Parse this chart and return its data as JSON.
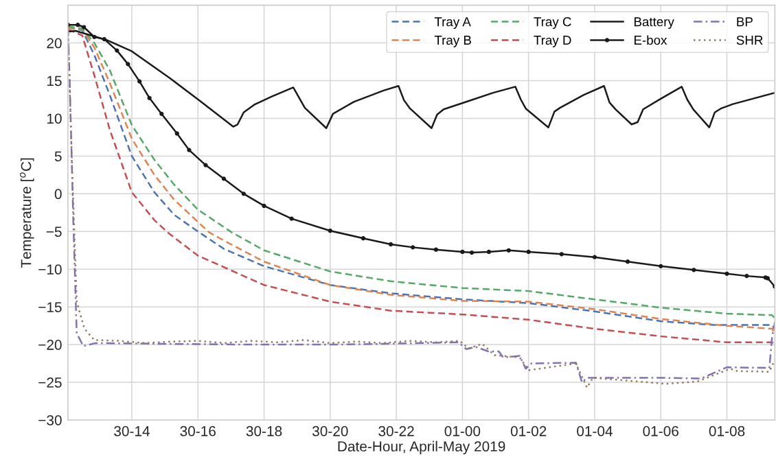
{
  "chart_data": {
    "type": "line",
    "xlabel": "Date-Hour, April-May 2019",
    "ylabel": "Temperature [$^{o}$C]",
    "xlim": [
      "2019-04-30T12:04",
      "2019-05-01T09:27"
    ],
    "ylim": [
      -30,
      25
    ],
    "xticks": [
      {
        "value": "2019-04-30T14:00",
        "label": "30-14"
      },
      {
        "value": "2019-04-30T16:00",
        "label": "30-16"
      },
      {
        "value": "2019-04-30T18:00",
        "label": "30-18"
      },
      {
        "value": "2019-04-30T20:00",
        "label": "30-20"
      },
      {
        "value": "2019-04-30T22:00",
        "label": "30-22"
      },
      {
        "value": "2019-05-01T00:00",
        "label": "01-00"
      },
      {
        "value": "2019-05-01T02:00",
        "label": "01-02"
      },
      {
        "value": "2019-05-01T04:00",
        "label": "01-04"
      },
      {
        "value": "2019-05-01T06:00",
        "label": "01-06"
      },
      {
        "value": "2019-05-01T08:00",
        "label": "01-08"
      }
    ],
    "yticks": [
      -30,
      -25,
      -20,
      -15,
      -10,
      -5,
      0,
      5,
      10,
      15,
      20
    ],
    "grid": true,
    "legend": "top right",
    "series": [
      {
        "name": "Tray A",
        "color": "#4c72b0",
        "line_style": "dashed",
        "x": [
          "2019-04-30T12:04",
          "2019-04-30T12:30",
          "2019-04-30T12:52",
          "2019-04-30T13:20",
          "2019-04-30T14:00",
          "2019-04-30T14:41",
          "2019-04-30T15:17",
          "2019-04-30T16:00",
          "2019-04-30T16:47",
          "2019-04-30T18:00",
          "2019-04-30T20:00",
          "2019-04-30T21:50",
          "2019-05-01T00:00",
          "2019-05-01T02:00",
          "2019-05-01T04:00",
          "2019-05-01T06:00",
          "2019-05-01T07:36",
          "2019-05-01T09:22",
          "2019-05-01T09:27"
        ],
        "values": [
          22,
          21.7,
          18.4,
          13.1,
          5.0,
          0.2,
          -2.8,
          -5.0,
          -7.3,
          -9.6,
          -12.1,
          -13.2,
          -14.0,
          -14.5,
          -15.6,
          -16.9,
          -17.4,
          -17.4,
          -18.0
        ]
      },
      {
        "name": "Tray B",
        "color": "#dd8452",
        "line_style": "dashed",
        "x": [
          "2019-04-30T12:04",
          "2019-04-30T12:30",
          "2019-04-30T12:52",
          "2019-04-30T13:20",
          "2019-04-30T14:00",
          "2019-04-30T14:41",
          "2019-04-30T15:17",
          "2019-04-30T16:20",
          "2019-04-30T16:47",
          "2019-04-30T18:00",
          "2019-04-30T20:00",
          "2019-04-30T21:50",
          "2019-05-01T00:00",
          "2019-05-01T02:00",
          "2019-05-01T04:00",
          "2019-05-01T06:00",
          "2019-05-01T08:00",
          "2019-05-01T09:22",
          "2019-05-01T09:27"
        ],
        "values": [
          22,
          21.8,
          19.4,
          14.7,
          7.3,
          2.5,
          -0.8,
          -5.1,
          -6.2,
          -9.0,
          -12.1,
          -13.4,
          -14.2,
          -14.3,
          -15.3,
          -16.6,
          -17.5,
          -17.9,
          -18.5
        ]
      },
      {
        "name": "Tray C",
        "color": "#55a868",
        "line_style": "dashed",
        "x": [
          "2019-04-30T12:04",
          "2019-04-30T12:30",
          "2019-04-30T12:52",
          "2019-04-30T13:20",
          "2019-04-30T14:00",
          "2019-04-30T14:41",
          "2019-04-30T15:17",
          "2019-04-30T16:00",
          "2019-04-30T17:01",
          "2019-04-30T18:00",
          "2019-04-30T20:00",
          "2019-04-30T21:50",
          "2019-05-01T00:00",
          "2019-05-01T02:00",
          "2019-05-01T04:00",
          "2019-05-01T06:00",
          "2019-05-01T08:00",
          "2019-05-01T09:22",
          "2019-05-01T09:27"
        ],
        "values": [
          22.2,
          21.9,
          20.0,
          16.4,
          9.1,
          4.5,
          1.2,
          -2.1,
          -5.1,
          -7.5,
          -10.3,
          -11.6,
          -12.5,
          -12.9,
          -14.0,
          -15.1,
          -15.9,
          -16.1,
          -16.5
        ]
      },
      {
        "name": "Tray D",
        "color": "#c44e52",
        "line_style": "dashed",
        "x": [
          "2019-04-30T12:04",
          "2019-04-30T12:30",
          "2019-04-30T12:52",
          "2019-04-30T13:20",
          "2019-04-30T14:00",
          "2019-04-30T14:41",
          "2019-04-30T15:08",
          "2019-04-30T16:00",
          "2019-04-30T18:00",
          "2019-04-30T20:00",
          "2019-04-30T21:50",
          "2019-05-01T00:00",
          "2019-05-01T02:00",
          "2019-05-01T04:00",
          "2019-05-01T06:00",
          "2019-05-01T08:00",
          "2019-05-01T09:22",
          "2019-05-01T09:27"
        ],
        "values": [
          21.8,
          21.0,
          15.7,
          8.5,
          0.2,
          -3.5,
          -5.3,
          -8.2,
          -12.1,
          -14.3,
          -15.5,
          -16.0,
          -16.7,
          -17.9,
          -18.9,
          -19.7,
          -19.7,
          -20.0
        ]
      },
      {
        "name": "Battery",
        "color": "#1a1a1a",
        "line_style": "solid",
        "x": [
          "2019-04-30T12:04",
          "2019-04-30T12:18",
          "2019-04-30T13:14",
          "2019-04-30T14:00",
          "2019-04-30T15:08",
          "2019-04-30T16:02",
          "2019-04-30T17:04",
          "2019-04-30T17:12",
          "2019-04-30T17:23",
          "2019-04-30T17:42",
          "2019-04-30T18:14",
          "2019-04-30T18:53",
          "2019-04-30T19:14",
          "2019-04-30T19:53",
          "2019-04-30T20:05",
          "2019-04-30T20:43",
          "2019-04-30T21:37",
          "2019-04-30T22:04",
          "2019-04-30T22:14",
          "2019-04-30T22:25",
          "2019-04-30T23:04",
          "2019-04-30T23:14",
          "2019-04-30T23:26",
          "2019-05-01T00:11",
          "2019-05-01T00:56",
          "2019-05-01T01:36",
          "2019-05-01T01:46",
          "2019-05-01T01:55",
          "2019-05-01T02:36",
          "2019-05-01T02:47",
          "2019-05-01T02:57",
          "2019-05-01T03:40",
          "2019-05-01T04:17",
          "2019-05-01T04:27",
          "2019-05-01T04:38",
          "2019-05-01T05:07",
          "2019-05-01T05:18",
          "2019-05-01T05:28",
          "2019-05-01T06:00",
          "2019-05-01T06:38",
          "2019-05-01T06:48",
          "2019-05-01T06:59",
          "2019-05-01T07:28",
          "2019-05-01T07:38",
          "2019-05-01T07:49",
          "2019-05-01T08:11",
          "2019-05-01T09:27"
        ],
        "values": [
          21.5,
          21.6,
          20.4,
          18.9,
          15.4,
          12.4,
          8.9,
          9.2,
          10.8,
          11.8,
          12.9,
          14.1,
          11.4,
          8.7,
          10.6,
          12.2,
          13.7,
          14.3,
          12.4,
          11.3,
          8.7,
          10.5,
          11.2,
          12.3,
          13.4,
          14.2,
          12.5,
          11.3,
          8.8,
          10.9,
          11.4,
          13.1,
          14.3,
          12.1,
          11.2,
          9.2,
          9.5,
          11.2,
          12.6,
          14.2,
          12.5,
          11.2,
          8.8,
          10.8,
          11.3,
          11.9,
          13.4
        ]
      },
      {
        "name": "E-box",
        "color": "#1a1a1a",
        "line_style": "solid",
        "marker": "circle",
        "x": [
          "2019-04-30T12:04",
          "2019-04-30T12:22",
          "2019-04-30T12:33",
          "2019-04-30T12:52",
          "2019-04-30T13:10",
          "2019-04-30T13:33",
          "2019-04-30T13:53",
          "2019-04-30T14:14",
          "2019-04-30T14:32",
          "2019-04-30T14:54",
          "2019-04-30T15:22",
          "2019-04-30T15:44",
          "2019-04-30T16:14",
          "2019-04-30T16:47",
          "2019-04-30T17:23",
          "2019-04-30T18:00",
          "2019-04-30T18:50",
          "2019-04-30T20:00",
          "2019-04-30T21:00",
          "2019-04-30T21:50",
          "2019-04-30T22:30",
          "2019-04-30T23:12",
          "2019-05-01T00:00",
          "2019-05-01T00:17",
          "2019-05-01T00:48",
          "2019-05-01T01:24",
          "2019-05-01T02:00",
          "2019-05-01T03:00",
          "2019-05-01T04:00",
          "2019-05-01T05:00",
          "2019-05-01T06:00",
          "2019-05-01T07:00",
          "2019-05-01T08:00",
          "2019-05-01T08:36",
          "2019-05-01T09:10",
          "2019-05-01T09:14",
          "2019-05-01T09:27"
        ],
        "values": [
          22.4,
          22.4,
          22.1,
          20.8,
          20.5,
          19.0,
          17.2,
          14.9,
          12.7,
          10.6,
          8.0,
          5.8,
          3.8,
          2.0,
          0.0,
          -1.6,
          -3.3,
          -4.9,
          -5.9,
          -6.7,
          -7.1,
          -7.4,
          -7.7,
          -7.8,
          -7.7,
          -7.5,
          -7.7,
          -8.0,
          -8.4,
          -9.0,
          -9.6,
          -10.1,
          -10.6,
          -10.9,
          -11.1,
          -11.2,
          -12.3
        ]
      },
      {
        "name": "BP",
        "color": "#8172b3",
        "line_style": "dashdot",
        "x": [
          "2019-04-30T12:04",
          "2019-04-30T12:07",
          "2019-04-30T12:14",
          "2019-04-30T12:20",
          "2019-04-30T12:32",
          "2019-04-30T12:54",
          "2019-04-30T15:00",
          "2019-04-30T17:33",
          "2019-04-30T20:00",
          "2019-04-30T21:37",
          "2019-04-30T23:53",
          "2019-05-01T00:07",
          "2019-05-01T00:24",
          "2019-05-01T00:47",
          "2019-05-01T01:06",
          "2019-05-01T01:14",
          "2019-05-01T01:44",
          "2019-05-01T01:55",
          "2019-05-01T02:05",
          "2019-05-01T03:26",
          "2019-05-01T03:37",
          "2019-05-01T03:46",
          "2019-05-01T06:00",
          "2019-05-01T07:13",
          "2019-05-01T08:00",
          "2019-05-01T09:17",
          "2019-05-01T09:22",
          "2019-05-01T09:27"
        ],
        "values": [
          22,
          15.7,
          -4.1,
          -18.5,
          -20.2,
          -19.8,
          -19.9,
          -20.0,
          -20.0,
          -19.9,
          -19.7,
          -20.6,
          -20.3,
          -20.9,
          -20.9,
          -21.7,
          -21.5,
          -23.2,
          -22.5,
          -22.4,
          -25.0,
          -24.4,
          -24.4,
          -24.5,
          -23.0,
          -23.1,
          -19.0,
          -17.0
        ]
      },
      {
        "name": "SHR",
        "color": "#937860",
        "line_style": "dotted",
        "x": [
          "2019-04-30T12:04",
          "2019-04-30T12:12",
          "2019-04-30T12:20",
          "2019-04-30T12:34",
          "2019-04-30T12:52",
          "2019-04-30T13:36",
          "2019-04-30T14:24",
          "2019-04-30T15:12",
          "2019-04-30T16:00",
          "2019-04-30T16:48",
          "2019-04-30T17:36",
          "2019-04-30T18:24",
          "2019-04-30T19:12",
          "2019-04-30T20:00",
          "2019-04-30T20:48",
          "2019-04-30T21:36",
          "2019-04-30T22:24",
          "2019-04-30T23:12",
          "2019-04-30T23:55",
          "2019-05-01T00:11",
          "2019-05-01T00:36",
          "2019-05-01T00:58",
          "2019-05-01T01:14",
          "2019-05-01T01:44",
          "2019-05-01T02:00",
          "2019-05-01T03:26",
          "2019-05-01T03:46",
          "2019-05-01T03:57",
          "2019-05-01T06:09",
          "2019-05-01T07:06",
          "2019-05-01T08:06",
          "2019-05-01T08:18",
          "2019-05-01T09:17",
          "2019-05-01T09:27"
        ],
        "values": [
          22,
          2.5,
          -14.3,
          -17.9,
          -19.4,
          -19.5,
          -19.8,
          -19.6,
          -19.5,
          -19.8,
          -19.5,
          -19.7,
          -19.4,
          -19.8,
          -19.6,
          -19.8,
          -19.5,
          -19.7,
          -19.5,
          -20.5,
          -19.9,
          -21.4,
          -21.5,
          -21.7,
          -23.4,
          -22.5,
          -25.7,
          -24.4,
          -25.2,
          -24.9,
          -23.2,
          -23.5,
          -23.6,
          -22.0
        ]
      }
    ]
  }
}
